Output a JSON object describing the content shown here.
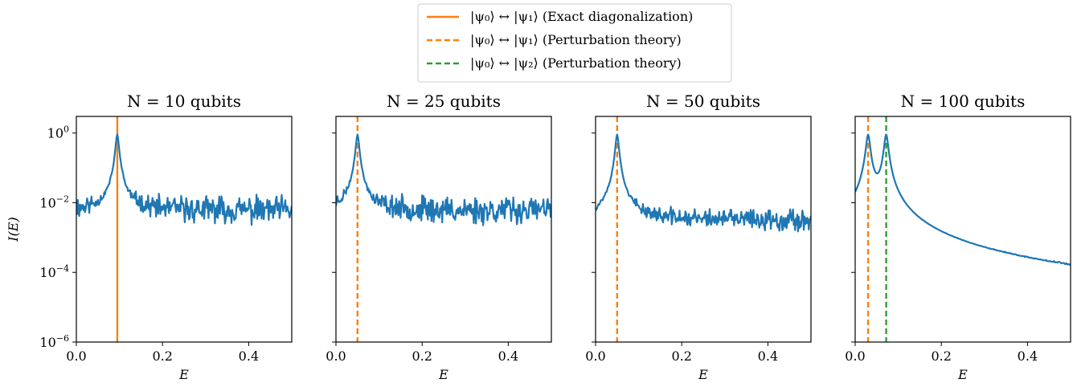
{
  "legend": {
    "placement": "top-center",
    "entries": [
      {
        "label": "|ψ₀⟩ ↔ |ψ₁⟩ (Exact diagonalization)",
        "color": "#ff7f0e",
        "style": "solid"
      },
      {
        "label": "|ψ₀⟩ ↔ |ψ₁⟩ (Perturbation theory)",
        "color": "#ff7f0e",
        "style": "dashed"
      },
      {
        "label": "|ψ₀⟩ ↔ |ψ₂⟩ (Perturbation theory)",
        "color": "#2ca02c",
        "style": "dashed"
      }
    ]
  },
  "colors": {
    "signal": "#1f77b4",
    "orange": "#ff7f0e",
    "green": "#2ca02c"
  },
  "chart_data": [
    {
      "type": "line",
      "title": "N = 10 qubits",
      "xlabel": "E",
      "ylabel": "I(E)",
      "xlim": [
        0,
        0.5
      ],
      "ylim": [
        1e-06,
        3
      ],
      "yscale": "log",
      "xticks": [
        "0.0",
        "0.2",
        "0.4"
      ],
      "yticks": [
        "10^0",
        "10^-2",
        "10^-4",
        "10^-6"
      ],
      "noise_level": 0.006,
      "noise_amp": 0.3,
      "peaks": [
        {
          "E": 0.095,
          "height": 0.9,
          "width": 0.0035
        }
      ],
      "vlines": [
        {
          "E": 0.095,
          "color": "#ff7f0e",
          "style": "solid"
        }
      ],
      "seed": 11
    },
    {
      "type": "line",
      "title": "N = 25 qubits",
      "xlabel": "E",
      "ylabel": "",
      "xlim": [
        0,
        0.5
      ],
      "ylim": [
        1e-06,
        3
      ],
      "yscale": "log",
      "xticks": [
        "0.0",
        "0.2",
        "0.4"
      ],
      "yticks": [],
      "noise_level": 0.006,
      "noise_amp": 0.3,
      "peaks": [
        {
          "E": 0.05,
          "height": 0.9,
          "width": 0.0035
        }
      ],
      "vlines": [
        {
          "E": 0.05,
          "color": "#ff7f0e",
          "style": "dashed"
        }
      ],
      "seed": 23
    },
    {
      "type": "line",
      "title": "N = 50 qubits",
      "xlabel": "E",
      "ylabel": "",
      "xlim": [
        0,
        0.5
      ],
      "ylim": [
        1e-06,
        3
      ],
      "yscale": "log",
      "xticks": [
        "0.0",
        "0.2",
        "0.4"
      ],
      "yticks": [],
      "noise_level": 0.0032,
      "noise_amp": 0.2,
      "peaks": [
        {
          "E": 0.05,
          "height": 0.9,
          "width": 0.0035
        }
      ],
      "vlines": [
        {
          "E": 0.05,
          "color": "#ff7f0e",
          "style": "dashed"
        }
      ],
      "seed": 37
    },
    {
      "type": "line",
      "title": "N = 100 qubits",
      "xlabel": "E",
      "ylabel": "",
      "xlim": [
        0,
        0.5
      ],
      "ylim": [
        1e-06,
        3
      ],
      "yscale": "log",
      "xticks": [
        "0.0",
        "0.2",
        "0.4"
      ],
      "yticks": [],
      "noise_level": 1.1e-05,
      "noise_amp": 0.25,
      "peaks": [
        {
          "E": 0.03,
          "height": 0.9,
          "width": 0.0042
        },
        {
          "E": 0.072,
          "height": 0.9,
          "width": 0.0042
        }
      ],
      "vlines": [
        {
          "E": 0.03,
          "color": "#ff7f0e",
          "style": "dashed"
        },
        {
          "E": 0.072,
          "color": "#2ca02c",
          "style": "dashed"
        }
      ],
      "seed": 53
    }
  ]
}
